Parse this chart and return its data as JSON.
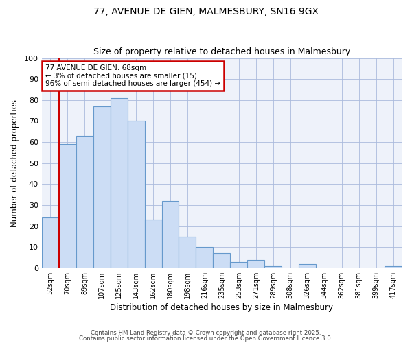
{
  "title_line1": "77, AVENUE DE GIEN, MALMESBURY, SN16 9GX",
  "title_line2": "Size of property relative to detached houses in Malmesbury",
  "xlabel": "Distribution of detached houses by size in Malmesbury",
  "ylabel": "Number of detached properties",
  "categories": [
    "52sqm",
    "70sqm",
    "89sqm",
    "107sqm",
    "125sqm",
    "143sqm",
    "162sqm",
    "180sqm",
    "198sqm",
    "216sqm",
    "235sqm",
    "253sqm",
    "271sqm",
    "289sqm",
    "308sqm",
    "326sqm",
    "344sqm",
    "362sqm",
    "381sqm",
    "399sqm",
    "417sqm"
  ],
  "values": [
    24,
    59,
    63,
    77,
    81,
    70,
    23,
    32,
    15,
    10,
    7,
    3,
    4,
    1,
    0,
    2,
    0,
    0,
    0,
    0,
    1
  ],
  "bar_color": "#ccddf5",
  "bar_edge_color": "#6699cc",
  "highlight_bar_index": 1,
  "highlight_line_color": "#cc0000",
  "ylim": [
    0,
    100
  ],
  "yticks": [
    0,
    10,
    20,
    30,
    40,
    50,
    60,
    70,
    80,
    90,
    100
  ],
  "annotation_text": "77 AVENUE DE GIEN: 68sqm\n← 3% of detached houses are smaller (15)\n96% of semi-detached houses are larger (454) →",
  "annotation_box_color": "#ffffff",
  "annotation_box_edge_color": "#cc0000",
  "footer_line1": "Contains HM Land Registry data © Crown copyright and database right 2025.",
  "footer_line2": "Contains public sector information licensed under the Open Government Licence 3.0.",
  "background_color": "#eef2fa",
  "grid_color": "#aabbdd",
  "title_fontsize": 10,
  "subtitle_fontsize": 9
}
